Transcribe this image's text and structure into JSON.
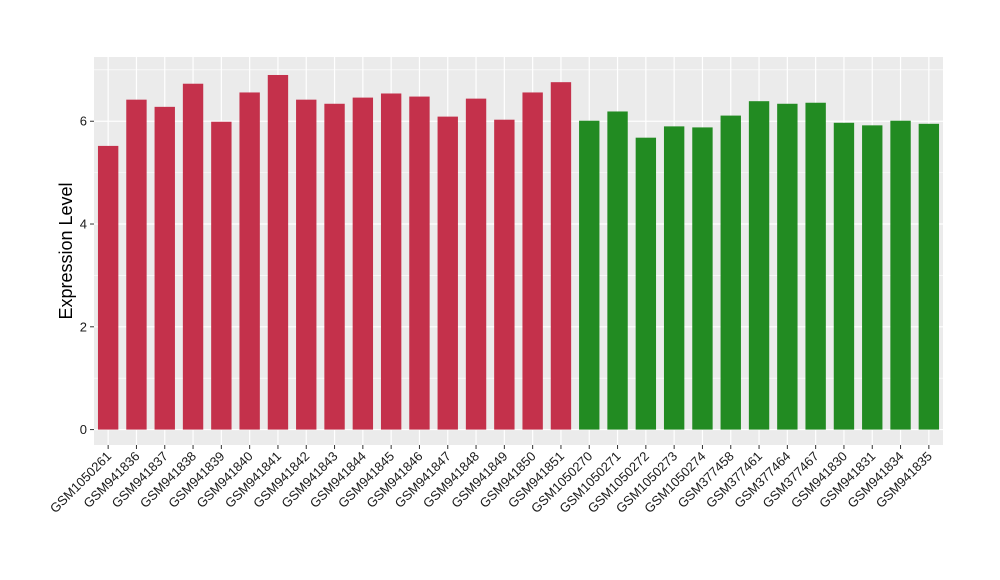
{
  "chart_data": {
    "type": "bar",
    "title": "",
    "xlabel": "",
    "ylabel": "Expression Level",
    "ylim": [
      -0.3,
      7.25
    ],
    "yticks": [
      0,
      2,
      4,
      6
    ],
    "grid": true,
    "legend": "none",
    "panel_background": "#ebebeb",
    "categories": [
      "GSM1050261",
      "GSM941836",
      "GSM941837",
      "GSM941838",
      "GSM941839",
      "GSM941840",
      "GSM941841",
      "GSM941842",
      "GSM941843",
      "GSM941844",
      "GSM941845",
      "GSM941846",
      "GSM941847",
      "GSM941848",
      "GSM941849",
      "GSM941850",
      "GSM941851",
      "GSM1050270",
      "GSM1050271",
      "GSM1050272",
      "GSM1050273",
      "GSM1050274",
      "GSM377458",
      "GSM377461",
      "GSM377464",
      "GSM377467",
      "GSM941830",
      "GSM941831",
      "GSM941834",
      "GSM941835"
    ],
    "values": [
      5.52,
      6.42,
      6.28,
      6.73,
      5.99,
      6.56,
      6.9,
      6.42,
      6.34,
      6.46,
      6.54,
      6.48,
      6.09,
      6.44,
      6.03,
      6.56,
      6.76,
      6.01,
      6.19,
      5.68,
      5.9,
      5.88,
      6.11,
      6.39,
      6.34,
      6.36,
      5.97,
      5.92,
      6.01,
      5.95
    ],
    "bar_colors": [
      "#c4314b",
      "#c4314b",
      "#c4314b",
      "#c4314b",
      "#c4314b",
      "#c4314b",
      "#c4314b",
      "#c4314b",
      "#c4314b",
      "#c4314b",
      "#c4314b",
      "#c4314b",
      "#c4314b",
      "#c4314b",
      "#c4314b",
      "#c4314b",
      "#c4314b",
      "#228b22",
      "#228b22",
      "#228b22",
      "#228b22",
      "#228b22",
      "#228b22",
      "#228b22",
      "#228b22",
      "#228b22",
      "#228b22",
      "#228b22",
      "#228b22",
      "#228b22"
    ]
  }
}
